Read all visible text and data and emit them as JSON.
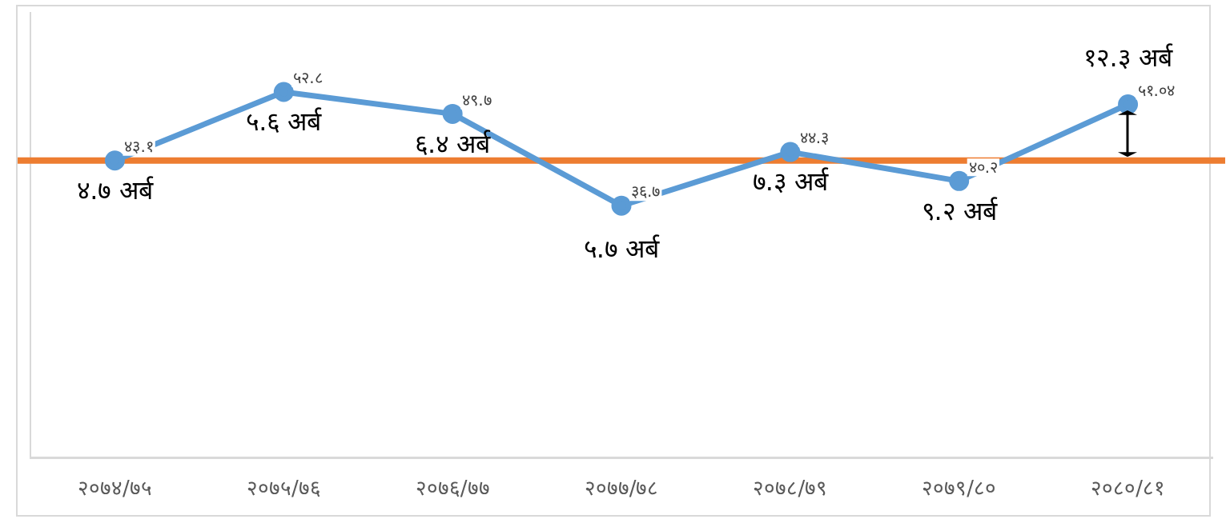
{
  "chart_data": {
    "type": "line",
    "categories": [
      "२०७४/७५",
      "२०७५/७६",
      "२०७६/७७",
      "२०७७/७८",
      "२०७८/७९",
      "२०७९/८०",
      "२०८०/८१"
    ],
    "series": [
      {
        "color": "#5b9bd5",
        "values": [
          43.1,
          52.8,
          49.7,
          36.7,
          44.3,
          40.2,
          51.04
        ],
        "value_labels": [
          "४३.१",
          "५२.८",
          "४९.७",
          "३६.७",
          "४४.३",
          "४०.२",
          "५१.०४"
        ]
      }
    ],
    "ylim": [
      1,
      64
    ],
    "tick_labels": "x",
    "grid": false,
    "legend": false,
    "marker": "circle",
    "line_style": "solid",
    "ref_lines": [
      {
        "axis": "y",
        "value": 43.1,
        "color": "#ed7d31",
        "line_style": "solid"
      }
    ],
    "annotations": [
      {
        "text": "४.७ अर्ब",
        "x": "२०७४/७५",
        "y": 43.1
      },
      {
        "text": "५.६ अर्ब",
        "x": "२०७५/७६",
        "y": 52.8
      },
      {
        "text": "६.४ अर्ब",
        "x": "२०७६/७७",
        "y": 49.7
      },
      {
        "text": "५.७ अर्ब",
        "x": "२०७७/७८",
        "y": 36.7
      },
      {
        "text": "७.३ अर्ब",
        "x": "२०७८/७९",
        "y": 44.3
      },
      {
        "text": "९.२ अर्ब",
        "x": "२०७९/८०",
        "y": 40.2
      },
      {
        "text": "१२.३ अर्ब",
        "x": "२०८०/८१",
        "y": 51.04
      }
    ]
  }
}
